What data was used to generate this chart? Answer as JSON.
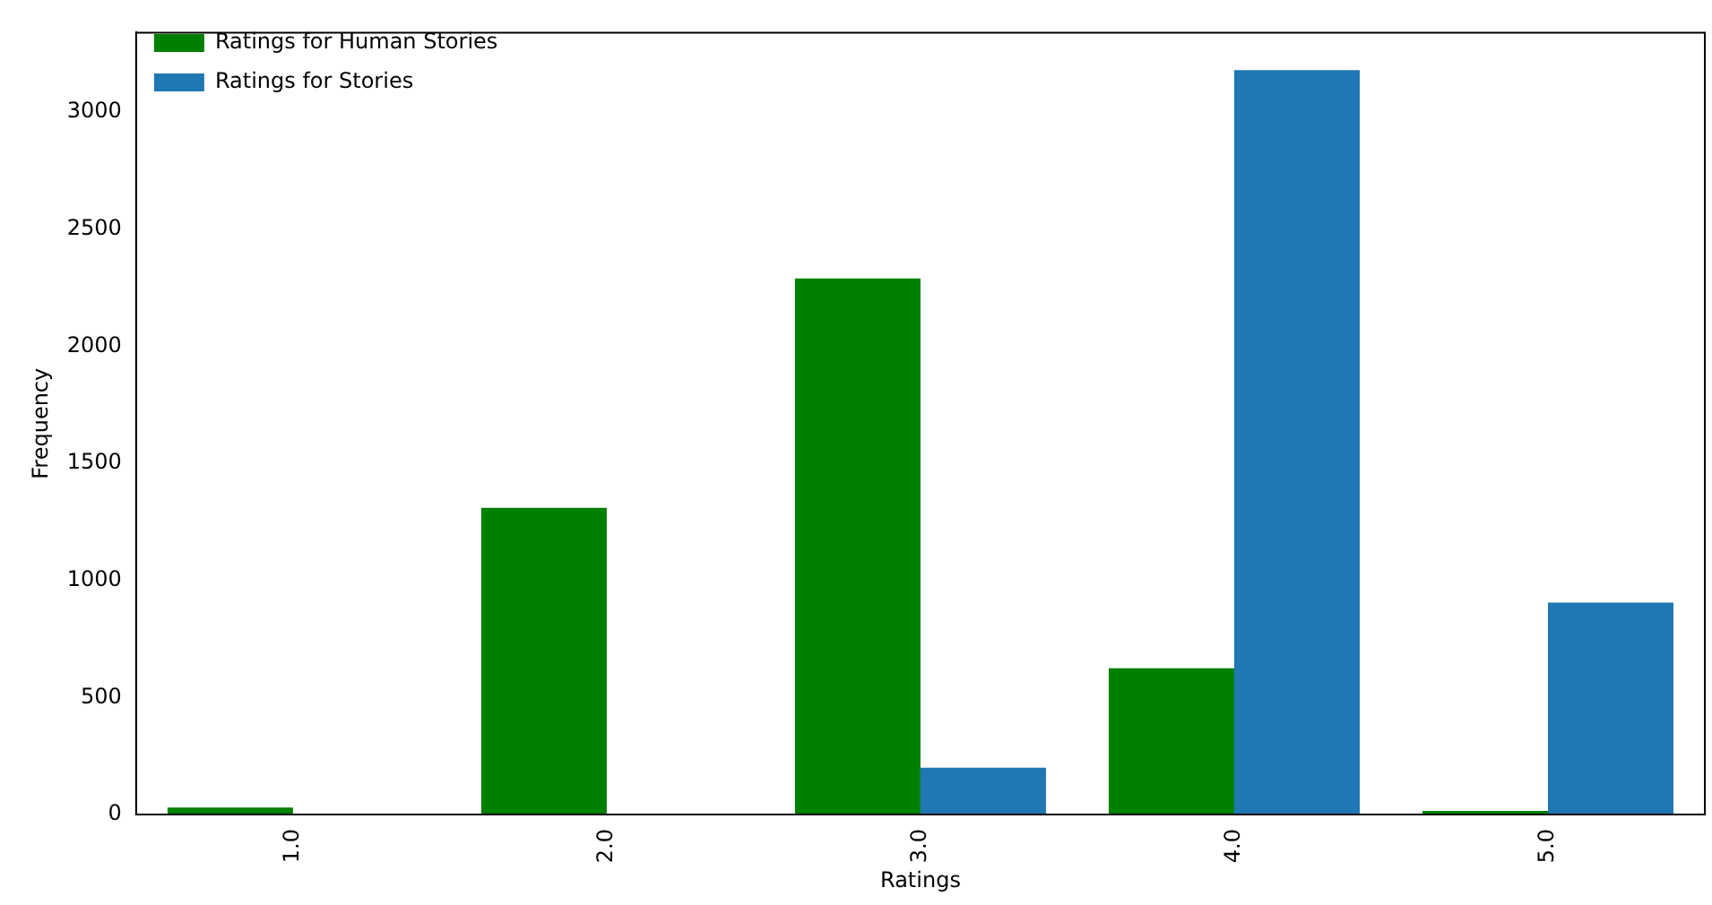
{
  "chart_data": {
    "type": "bar",
    "xlabel": "Ratings",
    "ylabel": "Frequency",
    "categories": [
      "1.0",
      "2.0",
      "3.0",
      "4.0",
      "5.0"
    ],
    "series": [
      {
        "name": "Ratings for Human Stories",
        "color": "#008000",
        "values": [
          30,
          1310,
          2290,
          625,
          15
        ]
      },
      {
        "name": "Ratings for Stories",
        "color": "#1f77b4",
        "values": [
          0,
          0,
          200,
          3180,
          905
        ]
      }
    ],
    "ylim": [
      0,
      3340
    ],
    "yticks": [
      0,
      500,
      1000,
      1500,
      2000,
      2500,
      3000
    ],
    "grid": false,
    "legend": "top left"
  }
}
